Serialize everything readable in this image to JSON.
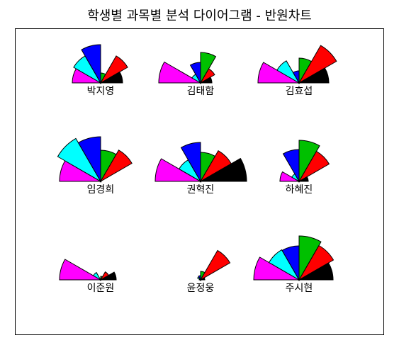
{
  "chart_data": {
    "type": "pie",
    "subtype": "half-pie star (segment) chart",
    "title": "학생별 과목별 분석 다이어그램 - 반원차트",
    "segment_colors": [
      "#ff00ff",
      "#00ffff",
      "#0000ff",
      "#00c000",
      "#ff0000",
      "#000000"
    ],
    "students": [
      {
        "name": "박지영",
        "values": [
          40,
          44,
          54,
          14,
          44,
          31
        ]
      },
      {
        "name": "김태함",
        "values": [
          59,
          14,
          29,
          43,
          23,
          16
        ]
      },
      {
        "name": "김효섭",
        "values": [
          58,
          36,
          17,
          35,
          61,
          42
        ]
      },
      {
        "name": "임경희",
        "values": [
          58,
          70,
          63,
          44,
          51,
          0
        ]
      },
      {
        "name": "권혁진",
        "values": [
          64,
          35,
          55,
          41,
          50,
          65
        ]
      },
      {
        "name": "하혜진",
        "values": [
          27,
          12,
          45,
          58,
          49,
          13
        ]
      },
      {
        "name": "이준원",
        "values": [
          58,
          12,
          0,
          5,
          13,
          22
        ]
      },
      {
        "name": "윤정웅",
        "values": [
          2,
          5,
          6,
          12,
          48,
          6
        ]
      },
      {
        "name": "주시현",
        "values": [
          64,
          49,
          48,
          62,
          56,
          48
        ]
      }
    ]
  }
}
